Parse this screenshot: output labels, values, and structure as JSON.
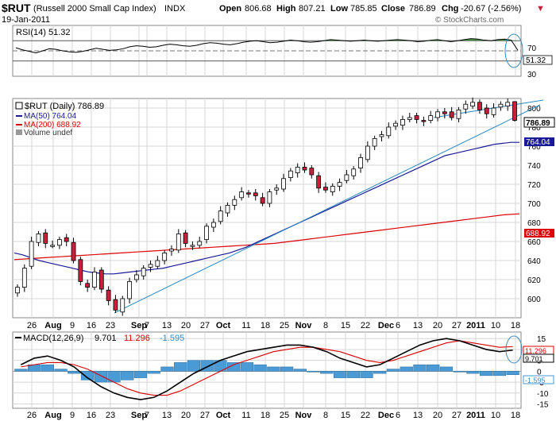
{
  "header": {
    "symbol": "$RUT",
    "name": "(Russell 2000 Small Cap Index)",
    "exchange": "INDX",
    "date": "19-Jan-2011",
    "open_label": "Open",
    "open": "806.68",
    "high_label": "High",
    "high": "807.21",
    "low_label": "Low",
    "low": "785.85",
    "close_label": "Close",
    "close": "786.89",
    "chg_label": "Chg",
    "chg": "-20.67 (-2.56%)",
    "chg_arrow": "▼",
    "watermark": "© StockCharts.com"
  },
  "colors": {
    "up_fill": "#ffffff",
    "down_fill": "#cc1f3b",
    "candle_stroke": "#000000",
    "ma50": "#1a1a99",
    "ma200": "#dd0000",
    "trend": "#2a8abf",
    "rsi_line": "#000000",
    "rsi_fill": "#3a8a3a",
    "macd": "#000000",
    "signal": "#dd0000",
    "hist": "#4a9ad6",
    "annotation": "#3a8ac0",
    "grid": "#c8c8c8"
  },
  "rsi": {
    "legend": "RSI(14) 51.32",
    "value_badge": "51.32",
    "levels": [
      "70",
      "30"
    ]
  },
  "price": {
    "legend_title": "$RUT (Daily) 786.89",
    "legend_ma50": "MA(50) 764.04",
    "legend_ma200": "MA(200) 688.92",
    "legend_volume": "Volume undef",
    "close_badge": "786.89",
    "ma50_badge": "764.04",
    "ma200_badge": "688.92",
    "y_ticks": [
      "800",
      "780",
      "760",
      "740",
      "720",
      "700",
      "680",
      "660",
      "640",
      "620",
      "600"
    ]
  },
  "macd": {
    "legend_name": "MACD(12,26,9)",
    "legend_macd": "9.701",
    "legend_signal": "11.296",
    "legend_hist": "-1.595",
    "badge_macd": "9.701",
    "badge_signal": "11.296",
    "badge_hist": "-1.595",
    "y_ticks": [
      "15",
      "10",
      "5",
      "0",
      "-5",
      "-10",
      "-15"
    ]
  },
  "x_axis": {
    "labels": [
      {
        "text": "26",
        "bold": false
      },
      {
        "text": "Aug",
        "bold": true
      },
      {
        "text": "9",
        "bold": false
      },
      {
        "text": "16",
        "bold": false
      },
      {
        "text": "23",
        "bold": false
      },
      {
        "text": "Sep",
        "bold": true
      },
      {
        "text": "7",
        "bold": false
      },
      {
        "text": "13",
        "bold": false
      },
      {
        "text": "20",
        "bold": false
      },
      {
        "text": "27",
        "bold": false
      },
      {
        "text": "Oct",
        "bold": true
      },
      {
        "text": "11",
        "bold": false
      },
      {
        "text": "18",
        "bold": false
      },
      {
        "text": "25",
        "bold": false
      },
      {
        "text": "Nov",
        "bold": true
      },
      {
        "text": "8",
        "bold": false
      },
      {
        "text": "15",
        "bold": false
      },
      {
        "text": "22",
        "bold": false
      },
      {
        "text": "Dec",
        "bold": true
      },
      {
        "text": "6",
        "bold": false
      },
      {
        "text": "13",
        "bold": false
      },
      {
        "text": "20",
        "bold": false
      },
      {
        "text": "27",
        "bold": false
      },
      {
        "text": "2011",
        "bold": true
      },
      {
        "text": "10",
        "bold": false
      },
      {
        "text": "18",
        "bold": false
      }
    ]
  },
  "chart_data": [
    {
      "type": "line",
      "title": "RSI(14)",
      "ylim": [
        0,
        100
      ],
      "reference_lines": [
        70,
        30
      ],
      "last_value": 51.32,
      "series": [
        {
          "name": "RSI(14)",
          "values": [
            56,
            52,
            49,
            46,
            50,
            54,
            53,
            50,
            48,
            47,
            49,
            52,
            55,
            53,
            51,
            52,
            54,
            58,
            60,
            59,
            57,
            58,
            61,
            63,
            62,
            60,
            59,
            61,
            64,
            66,
            65,
            63,
            62,
            64,
            67,
            69,
            70,
            68,
            66,
            67,
            69,
            71,
            70,
            68,
            67,
            68,
            70,
            72,
            71,
            70,
            69,
            70,
            71,
            70,
            69,
            70,
            71,
            72,
            71,
            70,
            68,
            69,
            71,
            72,
            70,
            68,
            70,
            72,
            74,
            73,
            71,
            70,
            72,
            73,
            71,
            51
          ]
        }
      ]
    },
    {
      "type": "candlestick",
      "title": "$RUT (Daily)",
      "ylim": [
        580,
        810
      ],
      "series": [
        {
          "name": "$RUT",
          "values": [
            612,
            632,
            660,
            668,
            658,
            656,
            662,
            660,
            640,
            618,
            612,
            628,
            610,
            598,
            588,
            600,
            618,
            625,
            632,
            636,
            640,
            648,
            652,
            668,
            658,
            656,
            660,
            676,
            680,
            692,
            698,
            704,
            712,
            710,
            708,
            700,
            712,
            716,
            726,
            734,
            738,
            735,
            730,
            716,
            714,
            718,
            722,
            730,
            736,
            748,
            760,
            768,
            772,
            780,
            784,
            788,
            790,
            788,
            786,
            792,
            796,
            794,
            790,
            798,
            804,
            806,
            798,
            794,
            800,
            804,
            806,
            787
          ]
        },
        {
          "name": "MA(50)",
          "values": [
            648,
            646,
            643,
            640,
            638,
            636,
            634,
            632,
            630,
            628,
            627,
            626,
            626,
            627,
            628,
            629,
            630,
            631,
            632,
            634,
            636,
            638,
            640,
            642,
            644,
            646,
            648,
            651,
            654,
            658,
            662,
            666,
            670,
            674,
            678,
            682,
            686,
            690,
            694,
            698,
            702,
            706,
            710,
            714,
            718,
            722,
            726,
            730,
            734,
            738,
            742,
            746,
            750,
            752,
            754,
            756,
            758,
            760,
            762,
            763,
            764,
            764
          ]
        },
        {
          "name": "MA(200)",
          "values": [
            641,
            642,
            643,
            644,
            645,
            646,
            647,
            648,
            649,
            650,
            651,
            652,
            653,
            654,
            655,
            656,
            657,
            658,
            660,
            662,
            664,
            666,
            668,
            670,
            672,
            674,
            676,
            678,
            680,
            682,
            684,
            686,
            688,
            689
          ]
        }
      ],
      "last": {
        "open": 806.68,
        "high": 807.21,
        "low": 785.85,
        "close": 786.89
      },
      "ma50_last": 764.04,
      "ma200_last": 688.92
    },
    {
      "type": "line",
      "title": "MACD(12,26,9)",
      "ylim": [
        -17,
        18
      ],
      "series": [
        {
          "name": "MACD",
          "values": [
            3,
            6,
            7,
            5,
            2,
            -3,
            -7,
            -10,
            -12,
            -13,
            -12,
            -9,
            -5,
            -1,
            2,
            5,
            7,
            9,
            10,
            11,
            12,
            12,
            11,
            9,
            6,
            4,
            2,
            3,
            6,
            9,
            12,
            14,
            15,
            14,
            12,
            10,
            9,
            9.7
          ]
        },
        {
          "name": "Signal",
          "values": [
            2,
            3,
            4,
            4,
            3,
            1,
            -2,
            -5,
            -8,
            -10,
            -11,
            -11,
            -9,
            -6,
            -3,
            0,
            3,
            5,
            7,
            9,
            10,
            11,
            11,
            10,
            9,
            7,
            5,
            4,
            5,
            7,
            9,
            11,
            13,
            14,
            13,
            12,
            11,
            11.3
          ]
        },
        {
          "name": "Histogram",
          "values": [
            1,
            3,
            3,
            1,
            -1,
            -4,
            -5,
            -5,
            -4,
            -3,
            -1,
            2,
            4,
            5,
            5,
            5,
            4,
            4,
            3,
            2,
            2,
            1,
            0,
            -1,
            -3,
            -3,
            -3,
            -1,
            1,
            2,
            3,
            3,
            2,
            0,
            -1,
            -2,
            -2,
            -1.6
          ]
        }
      ]
    }
  ]
}
